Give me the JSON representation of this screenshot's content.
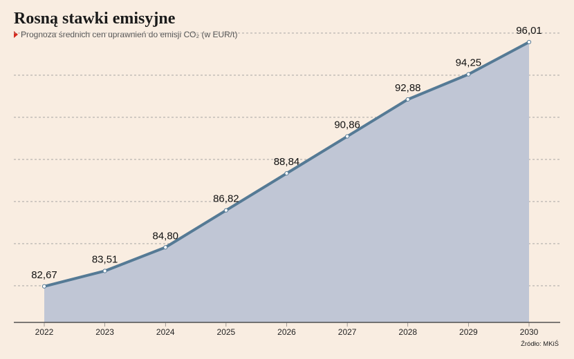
{
  "header": {
    "title": "Rosną stawki emisyjne",
    "subtitle": "Prognoza średnich cen uprawnień do emisji CO₂ (w EUR/t)"
  },
  "footer": {
    "source": "Źródło: MKiŚ"
  },
  "colors": {
    "line": "#557a95",
    "area": "#c0c6d5",
    "accent_marker": "#d62a1e",
    "background": "#f9ede1"
  },
  "chart_data": {
    "type": "area",
    "categories": [
      "2022",
      "2023",
      "2024",
      "2025",
      "2026",
      "2027",
      "2028",
      "2029",
      "2030"
    ],
    "values": [
      82.67,
      83.51,
      84.8,
      86.82,
      88.84,
      90.86,
      92.88,
      94.25,
      96.01
    ],
    "value_labels": [
      "82,67",
      "83,51",
      "84,80",
      "86,82",
      "88,84",
      "90,86",
      "92,88",
      "94,25",
      "96,01"
    ],
    "title": "Rosną stawki emisyjne",
    "subtitle": "Prognoza średnich cen uprawnień do emisji CO₂ (w EUR/t)",
    "xlabel": "",
    "ylabel": "",
    "ylim": [
      80.7,
      96.8
    ],
    "grid": true,
    "gridlines_at": [
      82.7,
      85.0,
      87.3,
      89.6,
      91.9,
      94.2,
      96.5
    ],
    "legend": "none"
  }
}
